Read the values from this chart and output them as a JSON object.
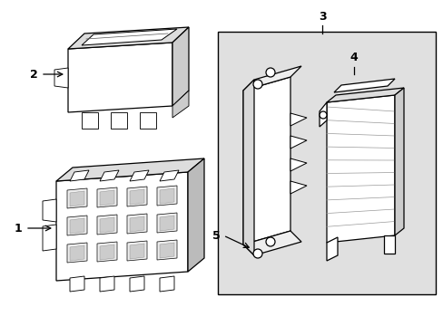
{
  "background_color": "#ffffff",
  "line_color": "#000000",
  "box_fill": "#e0e0e0",
  "figsize": [
    4.89,
    3.6
  ],
  "dpi": 100
}
